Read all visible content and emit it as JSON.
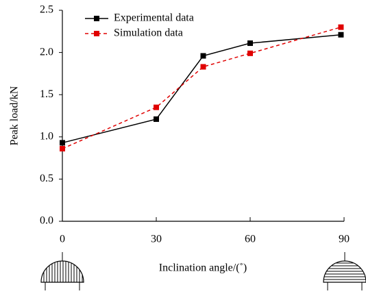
{
  "chart_data": {
    "type": "line",
    "x": [
      0,
      30,
      45,
      60,
      89
    ],
    "series": [
      {
        "name": "Experimental data",
        "color": "#000000",
        "dashed": false,
        "values": [
          0.93,
          1.21,
          1.96,
          2.11,
          2.21
        ]
      },
      {
        "name": "Simulation data",
        "color": "#e00000",
        "dashed": true,
        "values": [
          0.86,
          1.35,
          1.83,
          1.99,
          2.3
        ]
      }
    ],
    "xlim": [
      0,
      90
    ],
    "xticks": [
      0,
      30,
      60,
      90
    ],
    "ylim": [
      0,
      2.5
    ],
    "yticks": [
      {
        "value": 0,
        "label": "0.0"
      },
      {
        "value": 0.5,
        "label": "0.5"
      },
      {
        "value": 1,
        "label": "1.0"
      },
      {
        "value": 1.5,
        "label": "1.5"
      },
      {
        "value": 2,
        "label": "2.0"
      },
      {
        "value": 2.5,
        "label": "2.5"
      }
    ],
    "x_label": "Inclination angle/(˚)",
    "y_label": "Peak load/kN",
    "legend": "upper left",
    "grid": false
  }
}
